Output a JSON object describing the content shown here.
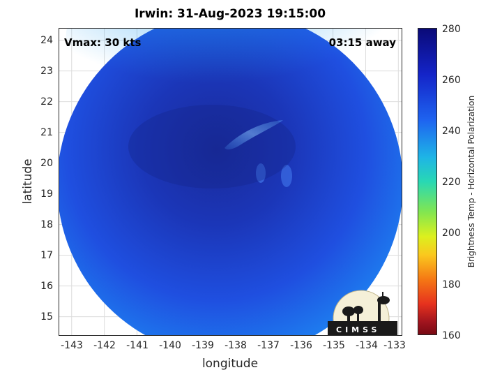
{
  "title": "Irwin: 31-Aug-2023 19:15:00",
  "vmax_label": "Vmax: 30 kts",
  "away_label": "03:15 away",
  "axes": {
    "xlabel": "longitude",
    "ylabel": "latitude",
    "x_ticks": [
      "-143",
      "-142",
      "-141",
      "-140",
      "-139",
      "-138",
      "-137",
      "-136",
      "-135",
      "-134",
      "-133"
    ],
    "y_ticks": [
      "24",
      "23",
      "22",
      "21",
      "20",
      "19",
      "18",
      "17",
      "16",
      "15"
    ],
    "xlim": [
      -143.4,
      -132.9
    ],
    "ylim": [
      14.4,
      24.4
    ]
  },
  "colorbar": {
    "label": "Brightness Temp - Horizontal Polarization",
    "ticks": [
      "280",
      "260",
      "240",
      "220",
      "200",
      "180",
      "160"
    ],
    "range": [
      160,
      280
    ]
  },
  "logo_text": "CIMSS",
  "colors": {
    "disk_core": "#1a2a9a",
    "disk_mid": "#1f4fe0",
    "disk_edge": "#1e7ff0",
    "grid": "#dcdcdc"
  }
}
